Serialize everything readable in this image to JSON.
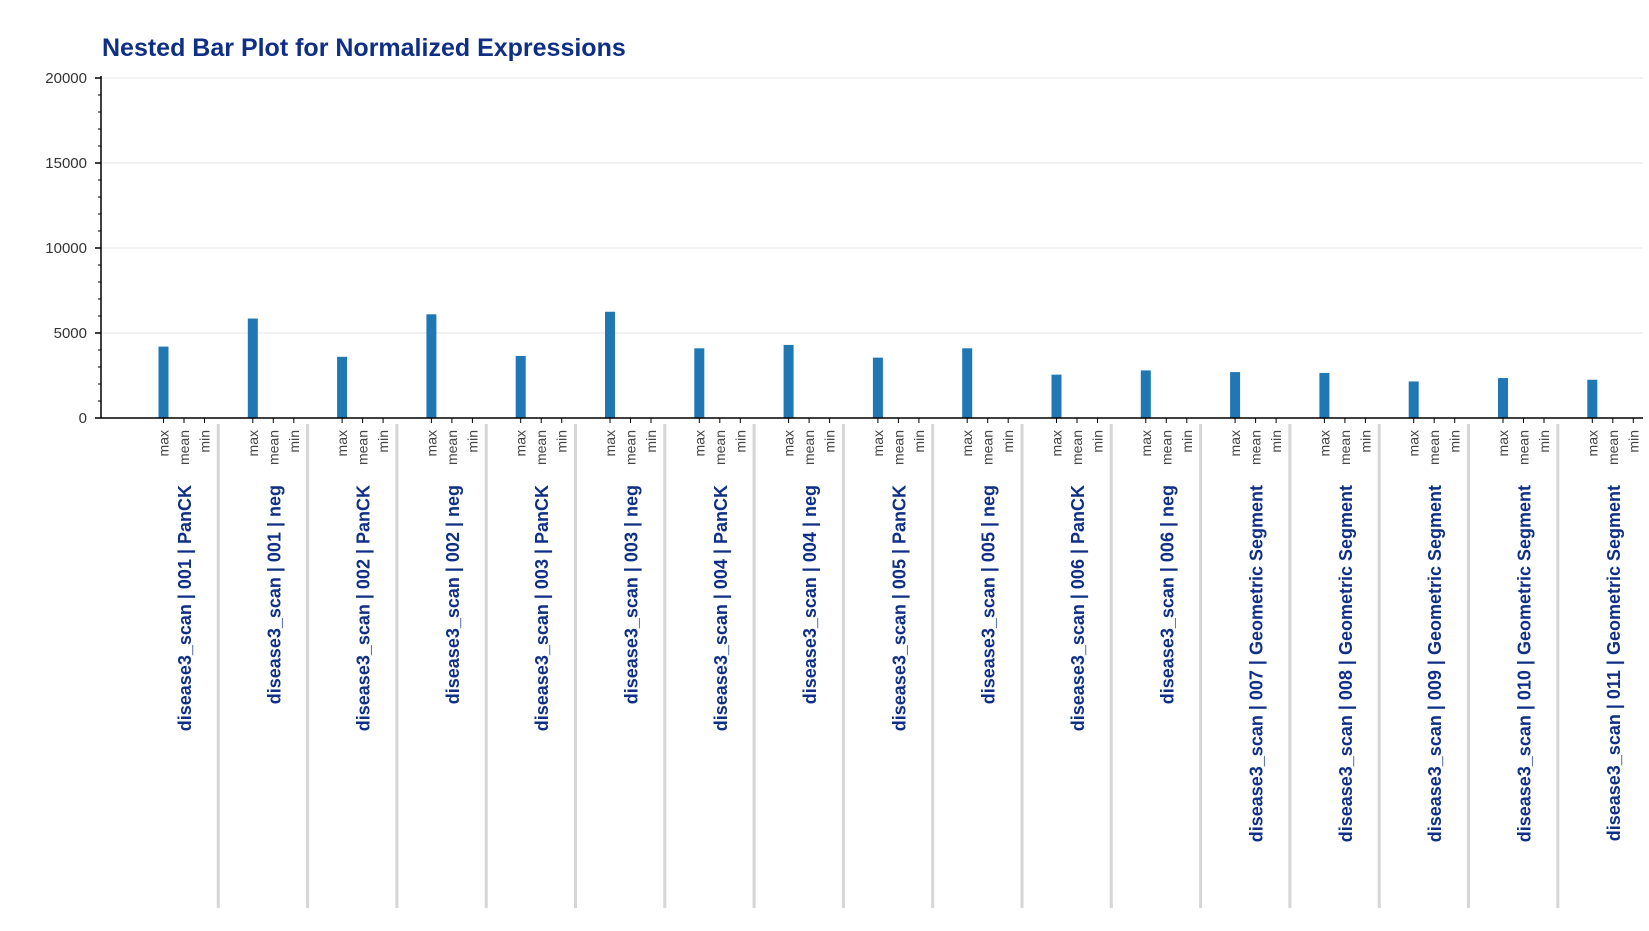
{
  "chart_data": {
    "type": "bar",
    "title": "Nested Bar Plot for Normalized Expressions",
    "xlabel": "",
    "ylabel": "",
    "ylim": [
      0,
      20000
    ],
    "yticks": [
      0,
      5000,
      10000,
      15000,
      20000
    ],
    "grid": true,
    "legend": "none",
    "bar_color": "#1f77b4",
    "subcategories": [
      "max",
      "mean",
      "min"
    ],
    "groups": [
      {
        "label": "disease3_scan | 001 | PanCK",
        "values": [
          4200,
          0,
          0
        ]
      },
      {
        "label": "disease3_scan | 001 | neg",
        "values": [
          5850,
          0,
          0
        ]
      },
      {
        "label": "disease3_scan | 002 | PanCK",
        "values": [
          3600,
          0,
          0
        ]
      },
      {
        "label": "disease3_scan | 002 | neg",
        "values": [
          6100,
          0,
          0
        ]
      },
      {
        "label": "disease3_scan | 003 | PanCK",
        "values": [
          3650,
          0,
          0
        ]
      },
      {
        "label": "disease3_scan | 003 | neg",
        "values": [
          6250,
          0,
          0
        ]
      },
      {
        "label": "disease3_scan | 004 | PanCK",
        "values": [
          4100,
          0,
          0
        ]
      },
      {
        "label": "disease3_scan | 004 | neg",
        "values": [
          4300,
          0,
          0
        ]
      },
      {
        "label": "disease3_scan | 005 | PanCK",
        "values": [
          3550,
          0,
          0
        ]
      },
      {
        "label": "disease3_scan | 005 | neg",
        "values": [
          4100,
          0,
          0
        ]
      },
      {
        "label": "disease3_scan | 006 | PanCK",
        "values": [
          2550,
          0,
          0
        ]
      },
      {
        "label": "disease3_scan | 006 | neg",
        "values": [
          2800,
          0,
          0
        ]
      },
      {
        "label": "disease3_scan | 007 | Geometric Segment",
        "values": [
          2700,
          0,
          0
        ]
      },
      {
        "label": "disease3_scan | 008 | Geometric Segment",
        "values": [
          2650,
          0,
          0
        ]
      },
      {
        "label": "disease3_scan | 009 | Geometric Segment",
        "values": [
          2150,
          0,
          0
        ]
      },
      {
        "label": "disease3_scan | 010 | Geometric Segment",
        "values": [
          2350,
          0,
          0
        ]
      },
      {
        "label": "disease3_scan | 011 | Geometric Segment",
        "values": [
          2250,
          0,
          0
        ]
      }
    ]
  }
}
